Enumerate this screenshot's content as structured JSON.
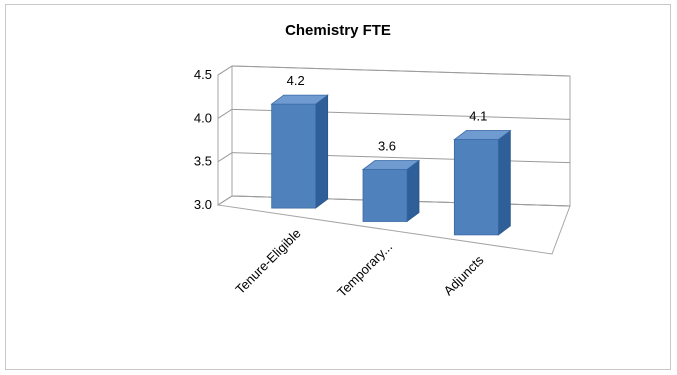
{
  "chart_data": {
    "type": "bar",
    "style": "3d-column",
    "title": "Chemistry FTE",
    "categories": [
      "Tenure-Eligible",
      "Temporary...",
      "Adjuncts"
    ],
    "values": [
      4.2,
      3.6,
      4.1
    ],
    "data_labels": [
      "4.2",
      "3.6",
      "4.1"
    ],
    "ylim": [
      3.0,
      4.5
    ],
    "yticks": [
      "3.0",
      "3.5",
      "4.0",
      "4.5"
    ],
    "grid": true,
    "legend": "none",
    "bar_color": "#4f81bd"
  }
}
